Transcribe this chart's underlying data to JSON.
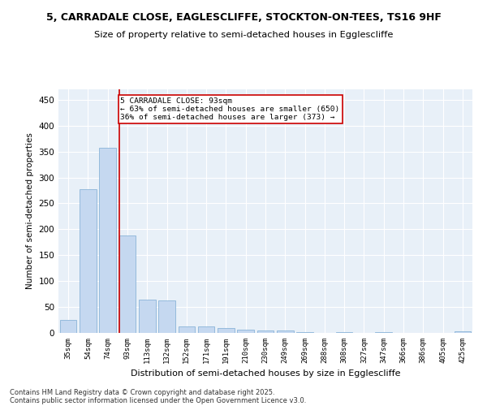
{
  "title1_actual": "5, CARRADALE CLOSE, EAGLESCLIFFE, STOCKTON-ON-TEES, TS16 9HF",
  "title2": "Size of property relative to semi-detached houses in Egglescliffe",
  "xlabel": "Distribution of semi-detached houses by size in Egglescliffe",
  "ylabel": "Number of semi-detached properties",
  "categories": [
    "35sqm",
    "54sqm",
    "74sqm",
    "93sqm",
    "113sqm",
    "132sqm",
    "152sqm",
    "171sqm",
    "191sqm",
    "210sqm",
    "230sqm",
    "249sqm",
    "269sqm",
    "288sqm",
    "308sqm",
    "327sqm",
    "347sqm",
    "366sqm",
    "386sqm",
    "405sqm",
    "425sqm"
  ],
  "values": [
    25,
    278,
    357,
    188,
    65,
    62,
    12,
    13,
    10,
    6,
    5,
    5,
    1,
    0,
    1,
    0,
    1,
    0,
    0,
    0,
    3
  ],
  "bar_color": "#c5d8f0",
  "bar_edge_color": "#8ab4d8",
  "vline_color": "#cc0000",
  "annotation_line1": "5 CARRADALE CLOSE: 93sqm",
  "annotation_line2": "← 63% of semi-detached houses are smaller (650)",
  "annotation_line3": "36% of semi-detached houses are larger (373) →",
  "annotation_box_color": "#ffffff",
  "annotation_box_edge": "#cc0000",
  "ylim": [
    0,
    470
  ],
  "yticks": [
    0,
    50,
    100,
    150,
    200,
    250,
    300,
    350,
    400,
    450
  ],
  "footer1": "Contains HM Land Registry data © Crown copyright and database right 2025.",
  "footer2": "Contains public sector information licensed under the Open Government Licence v3.0.",
  "bg_color": "#e8f0f8",
  "fig_bg_color": "#ffffff",
  "property_idx": 3
}
